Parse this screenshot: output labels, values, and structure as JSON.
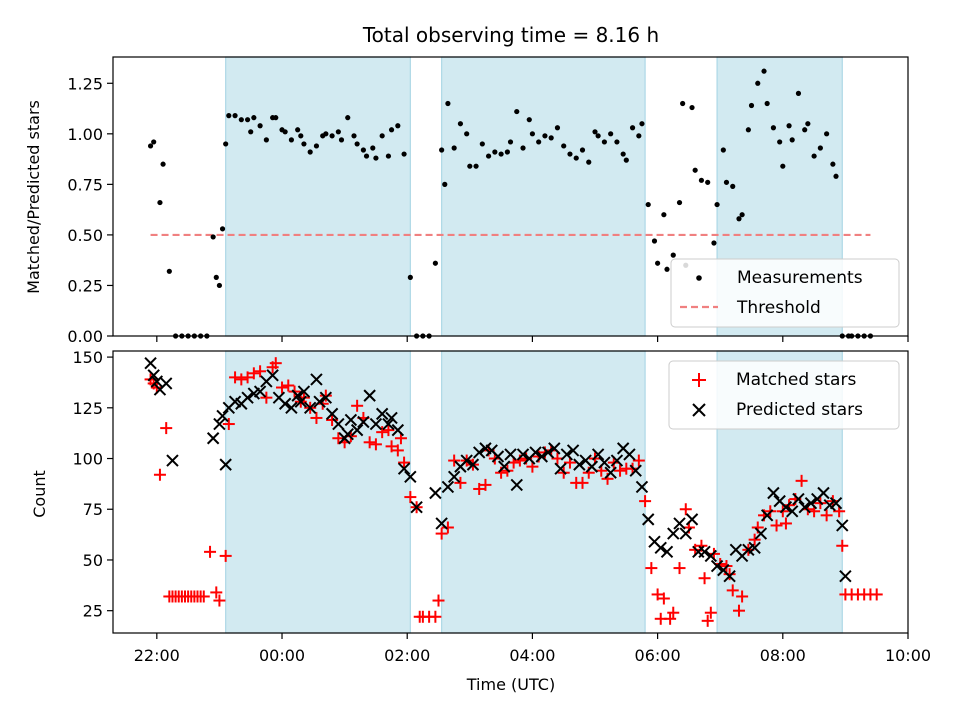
{
  "title": "Total observing time = 8.16 h",
  "x_ticks": [
    "22:00",
    "00:00",
    "02:00",
    "04:00",
    "06:00",
    "08:00",
    "10:00"
  ],
  "colors": {
    "shade": "#add8e6",
    "measurement": "#000000",
    "threshold": "#f08080",
    "matched": "#ff0000",
    "predicted": "#000000"
  },
  "chart_data": [
    {
      "type": "scatter",
      "ylabel": "Matched/Predicted stars",
      "xlabel": "",
      "x_unit": "hours (UTC, 00:00 = 0)",
      "xlim": [
        -2.7,
        10.0
      ],
      "ylim": [
        0,
        1.38
      ],
      "y_ticks": [
        "0.00",
        "0.25",
        "0.50",
        "0.75",
        "1.00",
        "1.25"
      ],
      "shaded_intervals": [
        [
          -0.9,
          2.05
        ],
        [
          2.55,
          5.8
        ],
        [
          6.95,
          8.95
        ]
      ],
      "threshold": {
        "name": "Threshold",
        "x": [
          -2.1,
          9.4
        ],
        "y": 0.5
      },
      "legend": {
        "position": "lower right",
        "entries": [
          "Measurements",
          "Threshold"
        ]
      },
      "series": [
        {
          "name": "Measurements",
          "x": [
            -2.1,
            -2.05,
            -1.95,
            -1.9,
            -1.8,
            -1.7,
            -1.6,
            -1.5,
            -1.4,
            -1.3,
            -1.2,
            -1.1,
            -1.05,
            -1.0,
            -0.95,
            -0.9,
            -0.85,
            -0.75,
            -0.65,
            -0.55,
            -0.5,
            -0.45,
            -0.35,
            -0.25,
            -0.15,
            -0.1,
            0.0,
            0.05,
            0.15,
            0.25,
            0.3,
            0.35,
            0.45,
            0.55,
            0.65,
            0.7,
            0.8,
            0.9,
            0.95,
            1.05,
            1.15,
            1.2,
            1.3,
            1.35,
            1.45,
            1.5,
            1.6,
            1.7,
            1.75,
            1.85,
            1.95,
            2.05,
            2.15,
            2.25,
            2.35,
            2.45,
            2.55,
            2.6,
            2.65,
            2.75,
            2.85,
            2.95,
            3.0,
            3.1,
            3.2,
            3.3,
            3.4,
            3.5,
            3.6,
            3.65,
            3.75,
            3.85,
            3.95,
            4.0,
            4.1,
            4.2,
            4.3,
            4.4,
            4.5,
            4.6,
            4.7,
            4.8,
            4.9,
            5.0,
            5.05,
            5.15,
            5.25,
            5.35,
            5.45,
            5.5,
            5.6,
            5.7,
            5.75,
            5.85,
            5.95,
            6.0,
            6.1,
            6.15,
            6.25,
            6.35,
            6.4,
            6.45,
            6.55,
            6.6,
            6.7,
            6.8,
            6.9,
            6.95,
            7.05,
            7.1,
            7.2,
            7.3,
            7.35,
            7.45,
            7.5,
            7.6,
            7.7,
            7.75,
            7.85,
            7.95,
            8.0,
            8.1,
            8.15,
            8.25,
            8.35,
            8.4,
            8.5,
            8.6,
            8.7,
            8.8,
            8.85,
            8.95,
            9.05,
            9.1,
            9.2,
            9.3,
            9.4
          ],
          "y": [
            0.94,
            0.96,
            0.66,
            0.85,
            0.32,
            0.0,
            0.0,
            0.0,
            0.0,
            0.0,
            0.0,
            0.49,
            0.29,
            0.25,
            0.53,
            0.95,
            1.09,
            1.09,
            1.07,
            1.07,
            1.01,
            1.08,
            1.04,
            0.97,
            1.08,
            1.08,
            1.02,
            1.01,
            0.97,
            1.02,
            0.99,
            0.95,
            0.91,
            0.94,
            0.99,
            1.0,
            0.99,
            1.01,
            0.97,
            1.08,
            0.99,
            0.95,
            0.92,
            0.89,
            0.93,
            0.88,
            0.99,
            0.89,
            1.02,
            1.04,
            0.9,
            0.29,
            0.0,
            0.0,
            0.0,
            0.36,
            0.92,
            0.75,
            1.15,
            0.93,
            1.05,
            1.0,
            0.84,
            0.84,
            0.95,
            0.89,
            0.91,
            0.9,
            0.91,
            0.96,
            1.11,
            0.93,
            1.07,
            1.0,
            0.96,
            0.99,
            0.98,
            1.03,
            0.94,
            0.9,
            0.88,
            0.92,
            0.86,
            1.01,
            0.99,
            0.96,
            1.0,
            0.96,
            0.9,
            0.87,
            1.03,
            0.99,
            1.05,
            0.65,
            0.47,
            0.36,
            0.6,
            0.33,
            0.4,
            0.66,
            1.15,
            0.35,
            1.13,
            0.82,
            0.77,
            0.76,
            0.46,
            0.65,
            0.92,
            0.76,
            0.74,
            0.58,
            0.6,
            1.02,
            1.14,
            1.25,
            1.31,
            1.15,
            1.03,
            0.96,
            0.84,
            1.04,
            0.97,
            1.2,
            1.02,
            1.05,
            0.89,
            0.93,
            1.0,
            0.85,
            0.79,
            0.0,
            0.0,
            0.0,
            0.0,
            0.0,
            0.0
          ]
        }
      ]
    },
    {
      "type": "scatter",
      "xlabel": "Time (UTC)",
      "ylabel": "Count",
      "x_unit": "hours (UTC, 00:00 = 0)",
      "xlim": [
        -2.7,
        10.0
      ],
      "ylim": [
        14,
        153
      ],
      "y_ticks": [
        "25",
        "50",
        "75",
        "100",
        "125",
        "150"
      ],
      "shaded_intervals": [
        [
          -0.9,
          2.05
        ],
        [
          2.55,
          5.8
        ],
        [
          6.95,
          8.95
        ]
      ],
      "legend": {
        "position": "upper right",
        "entries": [
          "Matched stars",
          "Predicted stars"
        ]
      },
      "series": [
        {
          "name": "Matched stars",
          "marker": "+",
          "x": [
            -2.1,
            -2.05,
            -2.0,
            -1.95,
            -1.85,
            -1.8,
            -1.75,
            -1.7,
            -1.65,
            -1.6,
            -1.55,
            -1.5,
            -1.45,
            -1.4,
            -1.35,
            -1.3,
            -1.25,
            -1.15,
            -1.05,
            -1.0,
            -0.9,
            -0.85,
            -0.75,
            -0.65,
            -0.55,
            -0.45,
            -0.35,
            -0.25,
            -0.15,
            -0.1,
            0.0,
            0.1,
            0.2,
            0.3,
            0.35,
            0.45,
            0.55,
            0.65,
            0.7,
            0.8,
            0.9,
            1.0,
            1.1,
            1.2,
            1.3,
            1.4,
            1.5,
            1.6,
            1.7,
            1.75,
            1.85,
            1.9,
            1.95,
            2.05,
            2.15,
            2.2,
            2.25,
            2.35,
            2.45,
            2.5,
            2.55,
            2.65,
            2.75,
            2.85,
            2.95,
            3.05,
            3.15,
            3.25,
            3.3,
            3.4,
            3.5,
            3.6,
            3.7,
            3.8,
            3.9,
            4.0,
            4.1,
            4.2,
            4.3,
            4.4,
            4.5,
            4.6,
            4.7,
            4.8,
            4.9,
            5.0,
            5.1,
            5.2,
            5.3,
            5.4,
            5.5,
            5.6,
            5.7,
            5.8,
            5.9,
            6.0,
            6.05,
            6.1,
            6.2,
            6.25,
            6.35,
            6.45,
            6.5,
            6.6,
            6.7,
            6.75,
            6.8,
            6.85,
            6.9,
            7.0,
            7.1,
            7.15,
            7.2,
            7.3,
            7.35,
            7.45,
            7.55,
            7.6,
            7.7,
            7.8,
            7.9,
            8.0,
            8.05,
            8.1,
            8.2,
            8.3,
            8.4,
            8.5,
            8.6,
            8.7,
            8.8,
            8.9,
            8.95,
            9.0,
            9.1,
            9.2,
            9.3,
            9.4,
            9.5
          ],
          "y": [
            139,
            137,
            135,
            92,
            115,
            32,
            32,
            32,
            32,
            32,
            32,
            32,
            32,
            32,
            32,
            32,
            32,
            54,
            34,
            30,
            52,
            117,
            140,
            139,
            140,
            142,
            143,
            130,
            145,
            147,
            135,
            136,
            133,
            128,
            130,
            125,
            120,
            127,
            131,
            119,
            110,
            108,
            111,
            126,
            120,
            108,
            107,
            113,
            114,
            106,
            104,
            110,
            98,
            81,
            76,
            22,
            22,
            22,
            22,
            30,
            63,
            66,
            99,
            88,
            99,
            97,
            85,
            87,
            104,
            100,
            93,
            94,
            98,
            99,
            100,
            96,
            101,
            103,
            104,
            100,
            93,
            98,
            88,
            88,
            93,
            100,
            94,
            90,
            98,
            94,
            95,
            95,
            99,
            79,
            46,
            33,
            21,
            31,
            21,
            24,
            46,
            75,
            66,
            55,
            57,
            41,
            20,
            24,
            53,
            48,
            47,
            43,
            35,
            25,
            32,
            55,
            60,
            66,
            72,
            74,
            67,
            74,
            68,
            77,
            80,
            89,
            75,
            74,
            78,
            72,
            79,
            74,
            57,
            33,
            33,
            33,
            33,
            33,
            33
          ]
        },
        {
          "name": "Predicted stars",
          "marker": "x",
          "x": [
            -2.1,
            -2.05,
            -2.0,
            -1.95,
            -1.85,
            -1.75,
            -1.1,
            -1.0,
            -0.95,
            -0.9,
            -0.85,
            -0.75,
            -0.65,
            -0.55,
            -0.45,
            -0.35,
            -0.25,
            -0.15,
            -0.05,
            0.05,
            0.15,
            0.25,
            0.3,
            0.35,
            0.45,
            0.55,
            0.6,
            0.7,
            0.8,
            0.9,
            1.0,
            1.05,
            1.1,
            1.2,
            1.3,
            1.4,
            1.5,
            1.6,
            1.7,
            1.75,
            1.85,
            1.95,
            2.05,
            2.15,
            2.45,
            2.55,
            2.65,
            2.75,
            2.85,
            2.95,
            3.05,
            3.15,
            3.25,
            3.35,
            3.45,
            3.55,
            3.65,
            3.75,
            3.85,
            3.95,
            4.05,
            4.15,
            4.25,
            4.35,
            4.45,
            4.55,
            4.65,
            4.75,
            4.85,
            4.95,
            5.05,
            5.15,
            5.25,
            5.35,
            5.45,
            5.55,
            5.65,
            5.75,
            5.85,
            5.95,
            6.05,
            6.15,
            6.25,
            6.35,
            6.45,
            6.55,
            6.65,
            6.75,
            6.85,
            6.95,
            7.05,
            7.15,
            7.25,
            7.35,
            7.45,
            7.55,
            7.65,
            7.75,
            7.85,
            7.95,
            8.05,
            8.15,
            8.25,
            8.35,
            8.45,
            8.55,
            8.65,
            8.75,
            8.85,
            8.95,
            9.0
          ],
          "y": [
            147,
            141,
            138,
            134,
            137,
            99,
            110,
            117,
            121,
            97,
            125,
            128,
            127,
            130,
            132,
            133,
            138,
            141,
            130,
            127,
            125,
            131,
            128,
            133,
            125,
            139,
            128,
            130,
            122,
            117,
            110,
            112,
            119,
            114,
            118,
            131,
            117,
            122,
            117,
            120,
            114,
            95,
            91,
            76,
            83,
            68,
            86,
            91,
            96,
            99,
            97,
            103,
            105,
            104,
            101,
            96,
            102,
            87,
            102,
            100,
            103,
            101,
            103,
            105,
            95,
            102,
            104,
            97,
            99,
            96,
            102,
            98,
            93,
            99,
            105,
            102,
            94,
            86,
            70,
            59,
            56,
            54,
            63,
            68,
            63,
            70,
            54,
            54,
            52,
            47,
            45,
            42,
            55,
            52,
            55,
            56,
            63,
            72,
            83,
            79,
            76,
            74,
            80,
            76,
            78,
            80,
            83,
            77,
            78,
            67,
            42
          ]
        }
      ]
    }
  ]
}
